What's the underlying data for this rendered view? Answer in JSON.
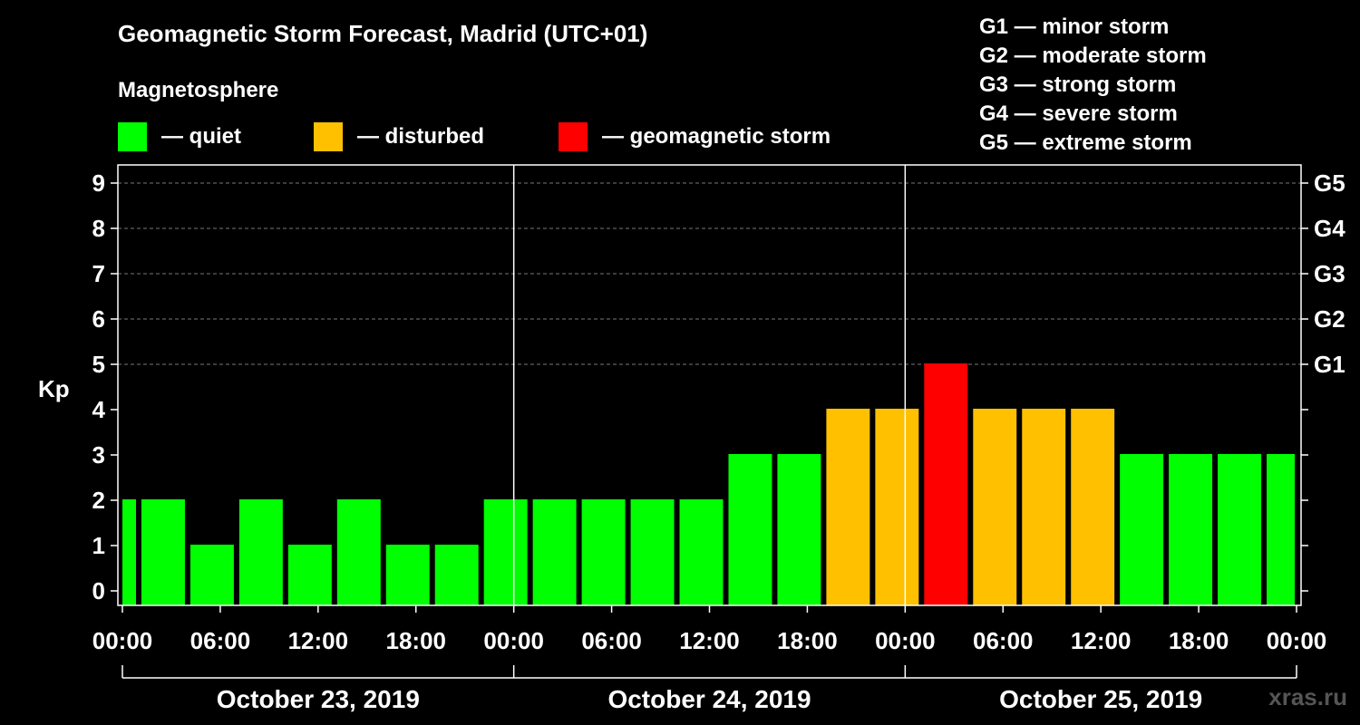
{
  "title": "Geomagnetic Storm Forecast, Madrid (UTC+01)",
  "legend": {
    "title": "Magnetosphere",
    "items": [
      {
        "label": "— quiet",
        "color": "#00ff00"
      },
      {
        "label": "— disturbed",
        "color": "#ffc000"
      },
      {
        "label": "— geomagnetic storm",
        "color": "#ff0000"
      }
    ]
  },
  "g_scale_legend": [
    "G1 — minor storm",
    "G2 — moderate storm",
    "G3 — strong storm",
    "G4 — severe storm",
    "G5 — extreme storm"
  ],
  "watermark": "xras.ru",
  "colors": {
    "quiet": "#00ff00",
    "disturbed": "#ffc000",
    "storm": "#ff0000"
  },
  "chart_data": {
    "type": "bar",
    "ylabel": "Kp",
    "ylim": [
      0,
      9
    ],
    "yticks": [
      "0",
      "1",
      "2",
      "3",
      "4",
      "5",
      "6",
      "7",
      "8",
      "9"
    ],
    "right_ticks": [
      {
        "kp": 5,
        "label": "G1"
      },
      {
        "kp": 6,
        "label": "G2"
      },
      {
        "kp": 7,
        "label": "G3"
      },
      {
        "kp": 8,
        "label": "G4"
      },
      {
        "kp": 9,
        "label": "G5"
      }
    ],
    "grid": "dashed horizontal at Kp 5-9",
    "xticks": [
      "00:00",
      "06:00",
      "12:00",
      "18:00",
      "00:00",
      "06:00",
      "12:00",
      "18:00",
      "00:00",
      "06:00",
      "12:00",
      "18:00",
      "00:00"
    ],
    "days": [
      "October 23, 2019",
      "October 24, 2019",
      "October 25, 2019"
    ],
    "bars": [
      {
        "start": "2019-10-23 00:00",
        "kp": 2,
        "level": "quiet"
      },
      {
        "start": "2019-10-23 01:00",
        "kp": 2,
        "level": "quiet"
      },
      {
        "start": "2019-10-23 04:00",
        "kp": 1,
        "level": "quiet"
      },
      {
        "start": "2019-10-23 07:00",
        "kp": 2,
        "level": "quiet"
      },
      {
        "start": "2019-10-23 10:00",
        "kp": 1,
        "level": "quiet"
      },
      {
        "start": "2019-10-23 13:00",
        "kp": 2,
        "level": "quiet"
      },
      {
        "start": "2019-10-23 16:00",
        "kp": 1,
        "level": "quiet"
      },
      {
        "start": "2019-10-23 19:00",
        "kp": 1,
        "level": "quiet"
      },
      {
        "start": "2019-10-23 22:00",
        "kp": 2,
        "level": "quiet"
      },
      {
        "start": "2019-10-24 01:00",
        "kp": 2,
        "level": "quiet"
      },
      {
        "start": "2019-10-24 04:00",
        "kp": 2,
        "level": "quiet"
      },
      {
        "start": "2019-10-24 07:00",
        "kp": 2,
        "level": "quiet"
      },
      {
        "start": "2019-10-24 10:00",
        "kp": 2,
        "level": "quiet"
      },
      {
        "start": "2019-10-24 13:00",
        "kp": 3,
        "level": "quiet"
      },
      {
        "start": "2019-10-24 16:00",
        "kp": 3,
        "level": "quiet"
      },
      {
        "start": "2019-10-24 19:00",
        "kp": 4,
        "level": "disturbed"
      },
      {
        "start": "2019-10-24 22:00",
        "kp": 4,
        "level": "disturbed"
      },
      {
        "start": "2019-10-25 01:00",
        "kp": 5,
        "level": "storm"
      },
      {
        "start": "2019-10-25 04:00",
        "kp": 4,
        "level": "disturbed"
      },
      {
        "start": "2019-10-25 07:00",
        "kp": 4,
        "level": "disturbed"
      },
      {
        "start": "2019-10-25 10:00",
        "kp": 4,
        "level": "disturbed"
      },
      {
        "start": "2019-10-25 13:00",
        "kp": 3,
        "level": "quiet"
      },
      {
        "start": "2019-10-25 16:00",
        "kp": 3,
        "level": "quiet"
      },
      {
        "start": "2019-10-25 19:00",
        "kp": 3,
        "level": "quiet"
      },
      {
        "start": "2019-10-25 22:00",
        "kp": 3,
        "level": "quiet"
      }
    ]
  }
}
